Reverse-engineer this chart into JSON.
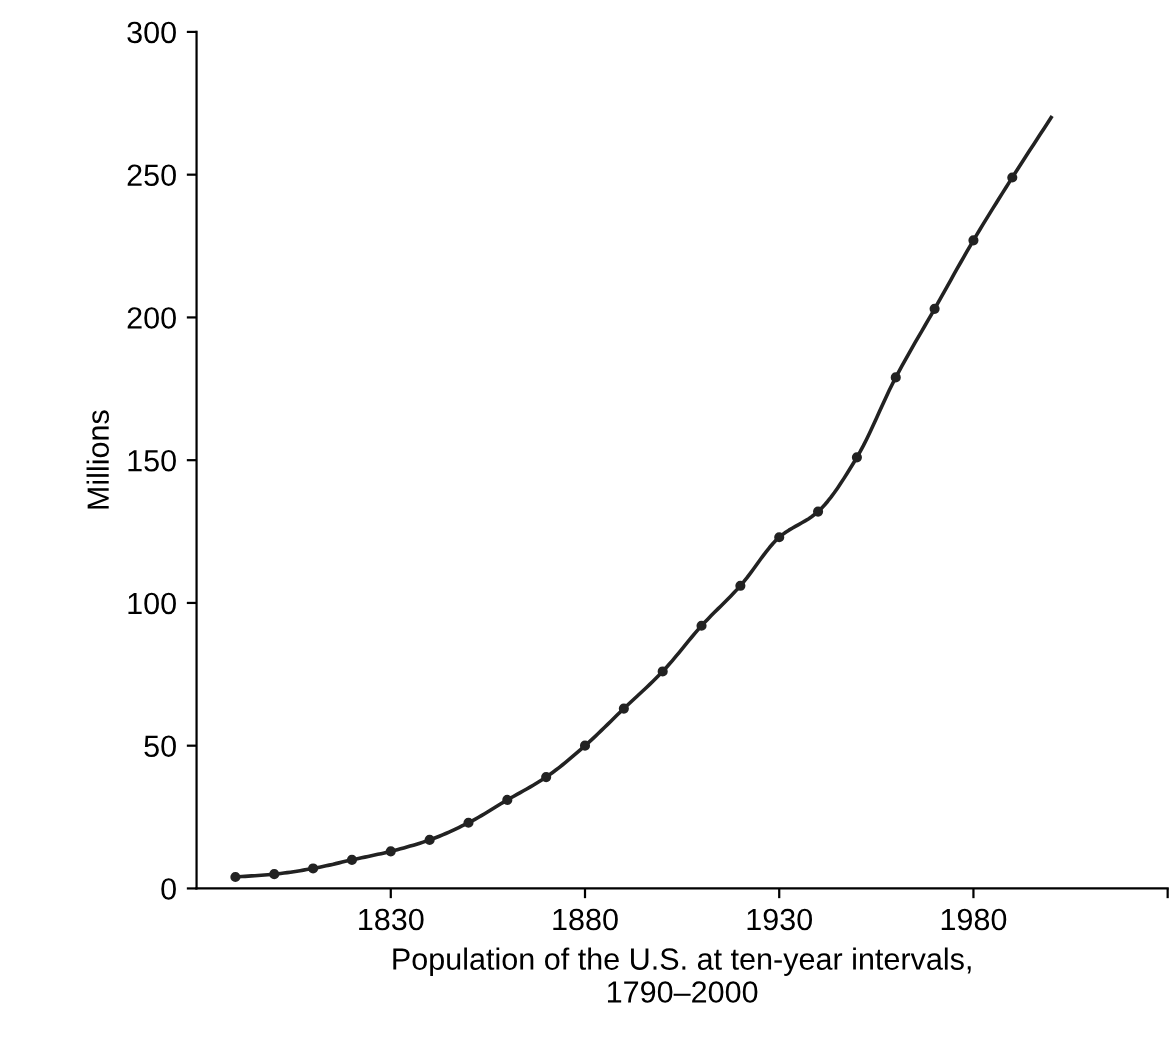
{
  "chart_data": {
    "type": "line",
    "ylabel": "Millions",
    "xlabel": "Population of the U.S. at ten-year intervals,\n1790–2000",
    "xlim": [
      1780,
      2030
    ],
    "xticks": [
      1830,
      1880,
      1930,
      1980,
      {
        "value": 2030,
        "label": null
      }
    ],
    "ylim": [
      0,
      300
    ],
    "yticks": [
      0,
      50,
      100,
      150,
      200,
      250,
      300
    ],
    "grid": false,
    "legend": false,
    "series": [
      {
        "color": "#222222",
        "marker": "none",
        "x": [
          1790,
          1800,
          1810,
          1820,
          1830,
          1840,
          1850,
          1860,
          1870,
          1880,
          1890,
          1900,
          1910,
          1920,
          1930,
          1940,
          1950,
          1960,
          1970,
          1980,
          1990,
          2000
        ],
        "values": [
          4,
          5,
          7,
          10,
          13,
          17,
          23,
          31,
          39,
          50,
          63,
          76,
          92,
          106,
          123,
          132,
          151,
          179,
          203,
          227,
          249,
          270
        ]
      },
      {
        "type": "scatter",
        "color": "#222222",
        "marker": "circle",
        "x": [
          1790,
          1800,
          1810,
          1820,
          1830,
          1840,
          1850,
          1860,
          1870,
          1880,
          1890,
          1900,
          1910,
          1920,
          1930,
          1940,
          1950,
          1960,
          1970,
          1980,
          1990
        ],
        "values": [
          4,
          5,
          7,
          10,
          13,
          17,
          23,
          31,
          39,
          50,
          63,
          76,
          92,
          106,
          123,
          132,
          151,
          179,
          203,
          227,
          249
        ]
      }
    ]
  }
}
